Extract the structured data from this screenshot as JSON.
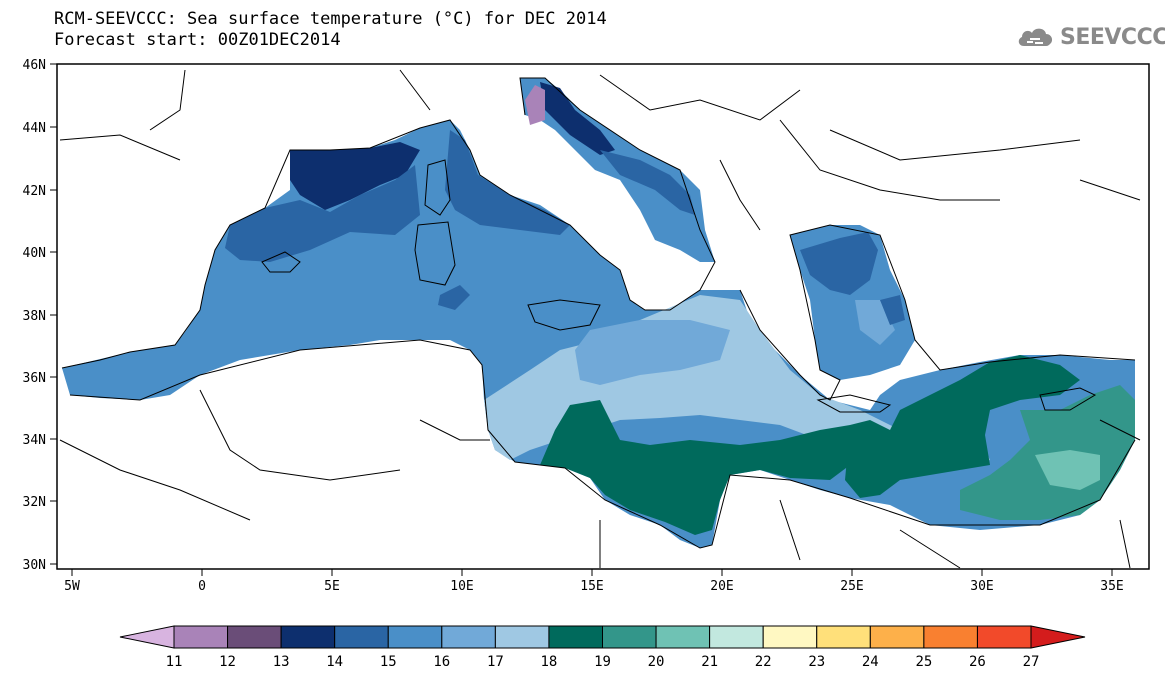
{
  "title_line1": "RCM-SEEVCCC: Sea surface temperature (°C) for DEC 2014",
  "title_line2": "Forecast start: 00Z01DEC2014",
  "logo": {
    "text": "SEEVCCC",
    "icon": "cloud-icon"
  },
  "map": {
    "lat_ticks": [
      "46N",
      "44N",
      "42N",
      "40N",
      "38N",
      "36N",
      "34N",
      "32N",
      "30N"
    ],
    "lon_ticks": [
      "5W",
      "0",
      "5E",
      "10E",
      "15E",
      "20E",
      "25E",
      "30E",
      "35E"
    ]
  },
  "colorbar": {
    "labels": [
      "11",
      "12",
      "13",
      "14",
      "15",
      "16",
      "17",
      "18",
      "19",
      "20",
      "21",
      "22",
      "23",
      "24",
      "25",
      "26",
      "27"
    ],
    "colors": [
      "#d8b4e0",
      "#a983b8",
      "#6a4d78",
      "#0d2f6e",
      "#2a65a4",
      "#4a8fc8",
      "#71a9d8",
      "#9fc8e3",
      "#006a5c",
      "#33968a",
      "#6fc2b4",
      "#c2e8df",
      "#fff8c2",
      "#ffe07a",
      "#fdb04a",
      "#f98030",
      "#f24a2a",
      "#d41c1c"
    ]
  }
}
